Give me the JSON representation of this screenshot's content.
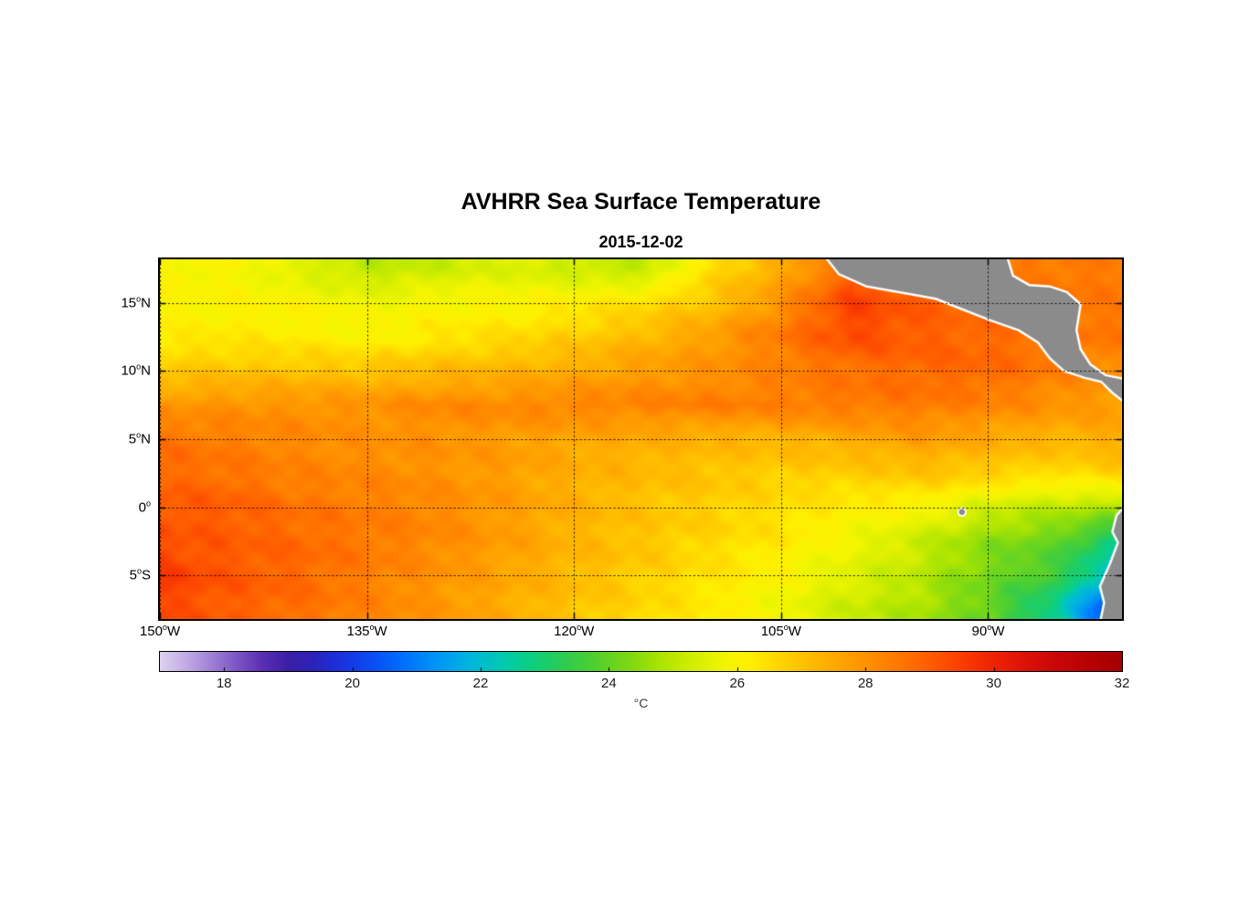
{
  "figure": {
    "title": "AVHRR Sea Surface Temperature",
    "subtitle": "2015-12-02"
  },
  "chart_data": {
    "type": "heatmap",
    "title": "AVHRR Sea Surface Temperature",
    "subtitle": "2015-12-02",
    "colorbar_label": "°C",
    "lon_range": [
      -150,
      -80.3
    ],
    "lat_range": [
      -8.2,
      18.2
    ],
    "x_ticks": [
      {
        "lon": -150,
        "label": "150",
        "sup": "o",
        "suffix": "W"
      },
      {
        "lon": -135,
        "label": "135",
        "sup": "o",
        "suffix": "W"
      },
      {
        "lon": -120,
        "label": "120",
        "sup": "o",
        "suffix": "W"
      },
      {
        "lon": -105,
        "label": "105",
        "sup": "o",
        "suffix": "W"
      },
      {
        "lon": -90,
        "label": "90",
        "sup": "o",
        "suffix": "W"
      }
    ],
    "y_ticks": [
      {
        "lat": 15,
        "label": "15",
        "sup": "o",
        "suffix": "N"
      },
      {
        "lat": 10,
        "label": "10",
        "sup": "o",
        "suffix": "N"
      },
      {
        "lat": 5,
        "label": "5",
        "sup": "o",
        "suffix": "N"
      },
      {
        "lat": 0,
        "label": "0",
        "sup": "o",
        "suffix": ""
      },
      {
        "lat": -5,
        "label": "5",
        "sup": "o",
        "suffix": "S"
      }
    ],
    "colorbar": {
      "range": [
        17,
        32
      ],
      "ticks": [
        18,
        20,
        22,
        24,
        26,
        28,
        30,
        32
      ]
    },
    "colormap": [
      [
        17.0,
        "#ded2f0"
      ],
      [
        17.4,
        "#c3abe6"
      ],
      [
        17.8,
        "#a081d6"
      ],
      [
        18.2,
        "#7d55c4"
      ],
      [
        18.6,
        "#5a2fb2"
      ],
      [
        19.0,
        "#3c1fa6"
      ],
      [
        19.4,
        "#2b23bb"
      ],
      [
        19.8,
        "#1a32dd"
      ],
      [
        20.3,
        "#0a4df5"
      ],
      [
        20.8,
        "#0070ff"
      ],
      [
        21.3,
        "#0095f5"
      ],
      [
        21.8,
        "#00b4e0"
      ],
      [
        22.3,
        "#00c9b4"
      ],
      [
        22.8,
        "#0ecf7f"
      ],
      [
        23.3,
        "#2ecc51"
      ],
      [
        23.8,
        "#52d02e"
      ],
      [
        24.3,
        "#7cd914"
      ],
      [
        24.8,
        "#abe402"
      ],
      [
        25.3,
        "#d3ee00"
      ],
      [
        25.8,
        "#f2f500"
      ],
      [
        26.2,
        "#ffef00"
      ],
      [
        26.6,
        "#ffd900"
      ],
      [
        27.0,
        "#ffc300"
      ],
      [
        27.5,
        "#ffab00"
      ],
      [
        28.0,
        "#ff9300"
      ],
      [
        28.5,
        "#ff7900"
      ],
      [
        29.0,
        "#ff5d00"
      ],
      [
        29.5,
        "#fb3e00"
      ],
      [
        30.0,
        "#ef2404"
      ],
      [
        30.5,
        "#dd1208"
      ],
      [
        31.0,
        "#c90707"
      ],
      [
        31.5,
        "#b80202"
      ],
      [
        32.0,
        "#a50000"
      ]
    ],
    "land_color": "#8b8b8b",
    "coast_color": "#ffffff",
    "sst_grid": {
      "lons": [
        -150,
        -145,
        -140,
        -135,
        -130,
        -125,
        -120,
        -115,
        -110,
        -105,
        -100,
        -95,
        -90,
        -85,
        -80
      ],
      "lats": [
        -7.5,
        -5,
        -2.5,
        0,
        2.5,
        5,
        7.5,
        10,
        12.5,
        15,
        17.5
      ],
      "values_c": [
        [
          29.3,
          29.0,
          28.7,
          28.3,
          27.9,
          27.5,
          27.0,
          26.6,
          26.2,
          25.8,
          25.2,
          24.8,
          24.0,
          22.5,
          19.5
        ],
        [
          29.6,
          29.1,
          28.8,
          28.4,
          28.0,
          27.6,
          27.2,
          26.8,
          26.4,
          26.0,
          25.5,
          25.0,
          24.2,
          23.5,
          21.5
        ],
        [
          29.2,
          29.0,
          28.8,
          28.5,
          28.2,
          27.8,
          27.3,
          27.0,
          26.6,
          26.3,
          25.8,
          25.2,
          24.5,
          24.0,
          22.5
        ],
        [
          29.1,
          29.0,
          28.6,
          28.4,
          28.2,
          27.8,
          27.4,
          27.0,
          26.8,
          26.5,
          26.2,
          26.0,
          25.3,
          25.0,
          24.8
        ],
        [
          28.8,
          28.6,
          28.3,
          28.2,
          28.0,
          27.8,
          27.4,
          27.2,
          27.0,
          26.8,
          26.8,
          27.0,
          26.8,
          26.5,
          26.8
        ],
        [
          28.6,
          28.4,
          28.2,
          28.0,
          28.0,
          27.8,
          27.6,
          27.5,
          27.3,
          27.3,
          27.5,
          27.8,
          27.5,
          27.3,
          27.5
        ],
        [
          27.9,
          28.0,
          28.0,
          28.0,
          28.2,
          28.2,
          28.3,
          28.3,
          28.4,
          28.4,
          28.5,
          28.5,
          28.3,
          28.0,
          27.8
        ],
        [
          26.9,
          27.0,
          27.0,
          27.0,
          27.2,
          27.3,
          27.5,
          27.8,
          28.0,
          28.3,
          28.6,
          28.8,
          28.8,
          28.4,
          28.0
        ],
        [
          26.2,
          26.3,
          26.2,
          26.0,
          26.3,
          26.5,
          26.8,
          27.2,
          27.8,
          28.5,
          29.3,
          29.0,
          28.8,
          28.6,
          28.5
        ],
        [
          26.0,
          26.0,
          26.0,
          25.8,
          26.0,
          26.0,
          26.2,
          26.5,
          27.0,
          28.0,
          29.5,
          29.0,
          28.6,
          28.5,
          28.5
        ],
        [
          26.0,
          26.0,
          25.5,
          25.0,
          25.2,
          25.5,
          25.2,
          25.0,
          26.5,
          27.5,
          28.8,
          28.5,
          28.5,
          28.5,
          28.5
        ]
      ]
    },
    "land_polygons": [
      [
        [
          -102.3,
          19.0
        ],
        [
          -100.8,
          17.1
        ],
        [
          -98.8,
          16.2
        ],
        [
          -96.0,
          15.7
        ],
        [
          -93.8,
          15.3
        ],
        [
          -91.8,
          14.5
        ],
        [
          -89.8,
          13.7
        ],
        [
          -87.8,
          13.0
        ],
        [
          -86.4,
          12.1
        ],
        [
          -85.5,
          10.9
        ],
        [
          -84.5,
          10.0
        ],
        [
          -83.0,
          9.5
        ],
        [
          -81.8,
          9.2
        ],
        [
          -81.0,
          8.4
        ],
        [
          -79.5,
          7.2
        ],
        [
          -79.5,
          9.3
        ],
        [
          -81.5,
          9.7
        ],
        [
          -82.6,
          10.5
        ],
        [
          -83.3,
          11.6
        ],
        [
          -83.6,
          13.0
        ],
        [
          -83.3,
          14.9
        ],
        [
          -84.3,
          15.8
        ],
        [
          -85.5,
          16.2
        ],
        [
          -87.0,
          16.3
        ],
        [
          -88.2,
          17.0
        ],
        [
          -88.8,
          19.0
        ]
      ],
      [
        [
          -79.5,
          0.8
        ],
        [
          -80.7,
          -0.6
        ],
        [
          -81.0,
          -1.8
        ],
        [
          -80.6,
          -2.6
        ],
        [
          -81.2,
          -4.2
        ],
        [
          -81.9,
          -5.8
        ],
        [
          -81.6,
          -7.0
        ],
        [
          -82.0,
          -9.0
        ],
        [
          -79.5,
          -9.0
        ]
      ]
    ],
    "islands": [
      {
        "name": "galapagos",
        "lon": -91.9,
        "lat": -0.35,
        "radius_deg": 0.28
      }
    ]
  }
}
